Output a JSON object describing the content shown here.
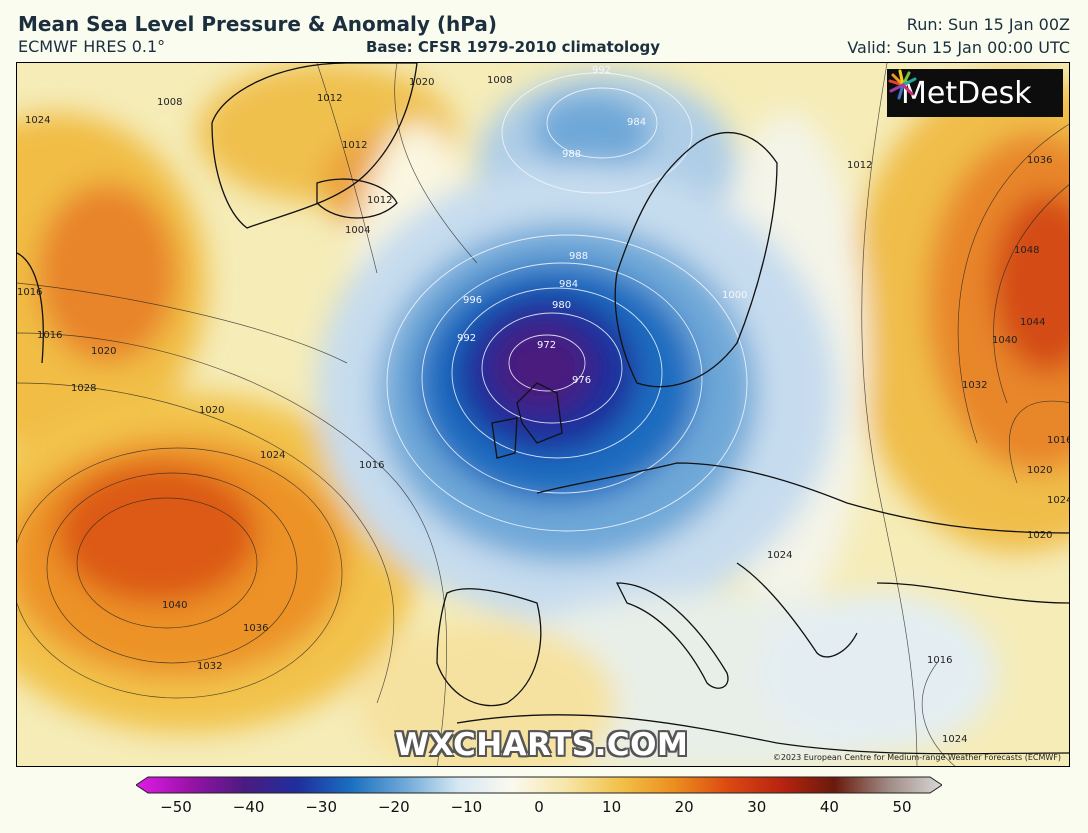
{
  "header": {
    "title": "Mean Sea Level Pressure & Anomaly (hPa)",
    "model": "ECMWF HRES 0.1°",
    "base": "Base: CFSR 1979-2010 climatology",
    "run": "Run: Sun 15 Jan 00Z",
    "valid": "Valid: Sun 15 Jan 00:00 UTC"
  },
  "logo": {
    "text": "MetDesk",
    "icon": "metdesk-burst-logo"
  },
  "watermark": "WXCHARTS.COM",
  "copyright": "©2023 European Centre for Medium-range Weather Forecasts (ECMWF)",
  "colorbar": {
    "min": -50,
    "max": 50,
    "tick_labels": [
      "−50",
      "−40",
      "−30",
      "−20",
      "−10",
      "0",
      "10",
      "20",
      "30",
      "40",
      "50"
    ],
    "colors": [
      "#e01ce6",
      "#9a12a8",
      "#4c1a80",
      "#1f2e9e",
      "#1a6fc0",
      "#6ea8d8",
      "#d6e8f2",
      "#fbf9ef",
      "#f6e6a8",
      "#f2c24a",
      "#ec8f1e",
      "#dc4a12",
      "#b82410",
      "#6a1a0c",
      "#a08a84",
      "#d8d8d8"
    ]
  },
  "contour_labels": [
    "1020",
    "1008",
    "1012",
    "1012",
    "1016",
    "1024",
    "1012",
    "1004",
    "1008",
    "992",
    "984",
    "988",
    "1012",
    "1036",
    "1048",
    "1044",
    "1040",
    "1032",
    "1028",
    "1020",
    "1020",
    "1024",
    "1016",
    "1016",
    "1016",
    "992",
    "996",
    "988",
    "984",
    "980",
    "972",
    "976",
    "1000",
    "1040",
    "1036",
    "1032",
    "1024",
    "1016",
    "1020",
    "1024",
    "1024",
    "1020"
  ]
}
